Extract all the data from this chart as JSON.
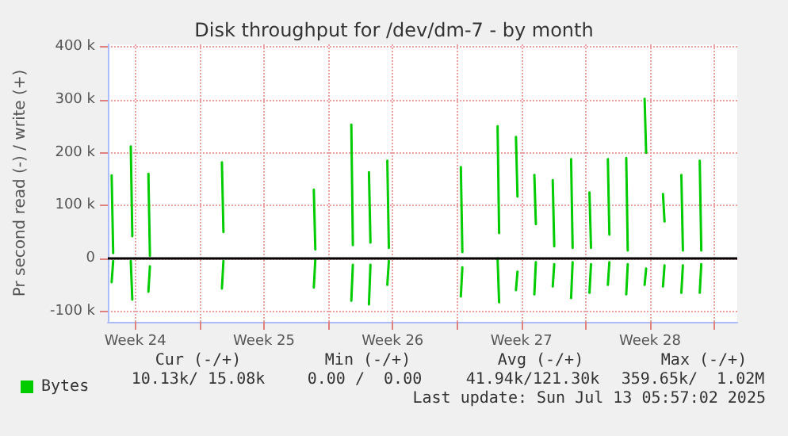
{
  "chart_data": {
    "type": "line",
    "title": "Disk throughput for /dev/dm-7 - by month",
    "ylabel": "Pr second read (-) / write (+)",
    "annotations": [
      "Cur (-/+)",
      "Min (-/+)",
      "Avg (-/+)",
      "Max (-/+)",
      "10.13k/ 15.08k",
      "0.00 /  0.00",
      "41.94k/121.30k",
      "359.65k/  1.02M",
      "Last update: Sun Jul 13 05:57:02 2025"
    ],
    "xlim": [
      "2025-06-09T00:00",
      "2025-07-13T06:00"
    ],
    "xticks": [
      {
        "value": "2025-06-10T12:00",
        "label": "Week 24"
      },
      {
        "value": "2025-06-14T00:00",
        "label": null
      },
      {
        "value": "2025-06-17T12:00",
        "label": "Week 25"
      },
      {
        "value": "2025-06-21T00:00",
        "label": null
      },
      {
        "value": "2025-06-24T12:00",
        "label": "Week 26"
      },
      {
        "value": "2025-06-28T00:00",
        "label": null
      },
      {
        "value": "2025-07-01T12:00",
        "label": "Week 27"
      },
      {
        "value": "2025-07-05T00:00",
        "label": null
      },
      {
        "value": "2025-07-08T12:00",
        "label": "Week 28"
      },
      {
        "value": "2025-07-12T00:00",
        "label": null
      }
    ],
    "ylim": [
      -120000,
      405000
    ],
    "yticks": [
      {
        "value": -100000,
        "label": "-100 k"
      },
      0,
      {
        "value": 100000,
        "label": "100 k"
      },
      {
        "value": 200000,
        "label": "200 k"
      },
      {
        "value": 300000,
        "label": "300 k"
      },
      {
        "value": 400000,
        "label": "400 k"
      }
    ],
    "grid": true,
    "legend": "bottom left",
    "marker": "none",
    "line_style": "solid",
    "ref_lines": [
      {
        "axis": "y",
        "value": 0,
        "color": "#000000"
      }
    ],
    "series": [
      {
        "name": "Bytes",
        "color": "#00cc00",
        "x": [
          "2025-06-09T05:00",
          "2025-06-09T07:00",
          "2025-06-09T12:00",
          "2025-06-10T06:00",
          "2025-06-10T08:00",
          "2025-06-10T12:00",
          "2025-06-11T05:00",
          "2025-06-11T07:00",
          "2025-06-11T12:00",
          "2025-06-15T05:00",
          "2025-06-15T07:00",
          "2025-06-15T12:00",
          "2025-06-20T05:00",
          "2025-06-20T07:00",
          "2025-06-20T12:00",
          "2025-06-22T06:00",
          "2025-06-22T08:00",
          "2025-06-22T12:00",
          "2025-06-23T05:00",
          "2025-06-23T07:00",
          "2025-06-23T12:00",
          "2025-06-24T05:00",
          "2025-06-24T07:00",
          "2025-06-24T12:00",
          "2025-06-28T05:00",
          "2025-06-28T07:00",
          "2025-06-28T12:00",
          "2025-06-30T05:00",
          "2025-06-30T07:00",
          "2025-06-30T12:00",
          "2025-07-01T05:00",
          "2025-07-01T07:00",
          "2025-07-01T12:00",
          "2025-07-02T05:00",
          "2025-07-02T07:00",
          "2025-07-02T12:00",
          "2025-07-03T05:00",
          "2025-07-03T07:00",
          "2025-07-03T12:00",
          "2025-07-04T05:00",
          "2025-07-04T07:00",
          "2025-07-04T12:00",
          "2025-07-05T05:00",
          "2025-07-05T07:00",
          "2025-07-05T12:00",
          "2025-07-06T05:00",
          "2025-07-06T07:00",
          "2025-07-06T12:00",
          "2025-07-07T05:00",
          "2025-07-07T07:00",
          "2025-07-07T12:00",
          "2025-07-08T05:00",
          "2025-07-08T07:00",
          "2025-07-08T12:00",
          "2025-07-09T05:00",
          "2025-07-09T07:00",
          "2025-07-09T12:00",
          "2025-07-10T05:00",
          "2025-07-10T07:00",
          "2025-07-10T12:00",
          "2025-07-11T05:00",
          "2025-07-11T07:00"
        ],
        "values": [
          157000,
          10000,
          null,
          212000,
          42000,
          null,
          160000,
          5000,
          null,
          182000,
          50000,
          null,
          130000,
          17000,
          null,
          253000,
          25000,
          null,
          163000,
          30000,
          null,
          185000,
          20000,
          null,
          173000,
          12000,
          null,
          250000,
          48000,
          null,
          230000,
          117000,
          null,
          158000,
          65000,
          null,
          148000,
          23000,
          null,
          188000,
          20000,
          null,
          125000,
          20000,
          null,
          188000,
          45000,
          null,
          190000,
          15000,
          null,
          302000,
          200000,
          null,
          122000,
          70000,
          null,
          158000,
          15000,
          null,
          185000,
          15000
        ]
      },
      {
        "color": "#00cc00",
        "x": [
          "2025-06-09T05:00",
          "2025-06-09T07:00",
          "2025-06-09T12:00",
          "2025-06-10T06:00",
          "2025-06-10T08:00",
          "2025-06-10T12:00",
          "2025-06-11T05:00",
          "2025-06-11T07:00",
          "2025-06-11T12:00",
          "2025-06-15T05:00",
          "2025-06-15T07:00",
          "2025-06-15T12:00",
          "2025-06-20T05:00",
          "2025-06-20T07:00",
          "2025-06-20T12:00",
          "2025-06-22T06:00",
          "2025-06-22T08:00",
          "2025-06-22T12:00",
          "2025-06-23T05:00",
          "2025-06-23T07:00",
          "2025-06-23T12:00",
          "2025-06-24T05:00",
          "2025-06-24T07:00",
          "2025-06-24T12:00",
          "2025-06-28T05:00",
          "2025-06-28T07:00",
          "2025-06-28T12:00",
          "2025-06-30T05:00",
          "2025-06-30T07:00",
          "2025-06-30T12:00",
          "2025-07-01T05:00",
          "2025-07-01T07:00",
          "2025-07-01T12:00",
          "2025-07-02T05:00",
          "2025-07-02T07:00",
          "2025-07-02T12:00",
          "2025-07-03T05:00",
          "2025-07-03T07:00",
          "2025-07-03T12:00",
          "2025-07-04T05:00",
          "2025-07-04T07:00",
          "2025-07-04T12:00",
          "2025-07-05T05:00",
          "2025-07-05T07:00",
          "2025-07-05T12:00",
          "2025-07-06T05:00",
          "2025-07-06T07:00",
          "2025-07-06T12:00",
          "2025-07-07T05:00",
          "2025-07-07T07:00",
          "2025-07-07T12:00",
          "2025-07-08T05:00",
          "2025-07-08T07:00",
          "2025-07-08T12:00",
          "2025-07-09T05:00",
          "2025-07-09T07:00",
          "2025-07-09T12:00",
          "2025-07-10T05:00",
          "2025-07-10T07:00",
          "2025-07-10T12:00",
          "2025-07-11T05:00",
          "2025-07-11T07:00"
        ],
        "values": [
          -45000,
          -5000,
          null,
          -5000,
          -78000,
          null,
          -63000,
          -15000,
          null,
          -57000,
          -5000,
          null,
          -55000,
          -2000,
          null,
          -80000,
          -12000,
          null,
          -87000,
          -12000,
          null,
          -50000,
          -5000,
          null,
          -72000,
          -17000,
          null,
          0,
          -83000,
          null,
          -60000,
          -25000,
          null,
          -68000,
          -7000,
          null,
          -53000,
          -11000,
          null,
          -75000,
          -7000,
          null,
          -65000,
          -11000,
          null,
          -50000,
          -7000,
          null,
          -68000,
          -11000,
          null,
          -50000,
          -19000,
          null,
          -53000,
          -13000,
          null,
          -65000,
          -13000,
          null,
          -65000,
          -11000
        ]
      }
    ]
  }
}
